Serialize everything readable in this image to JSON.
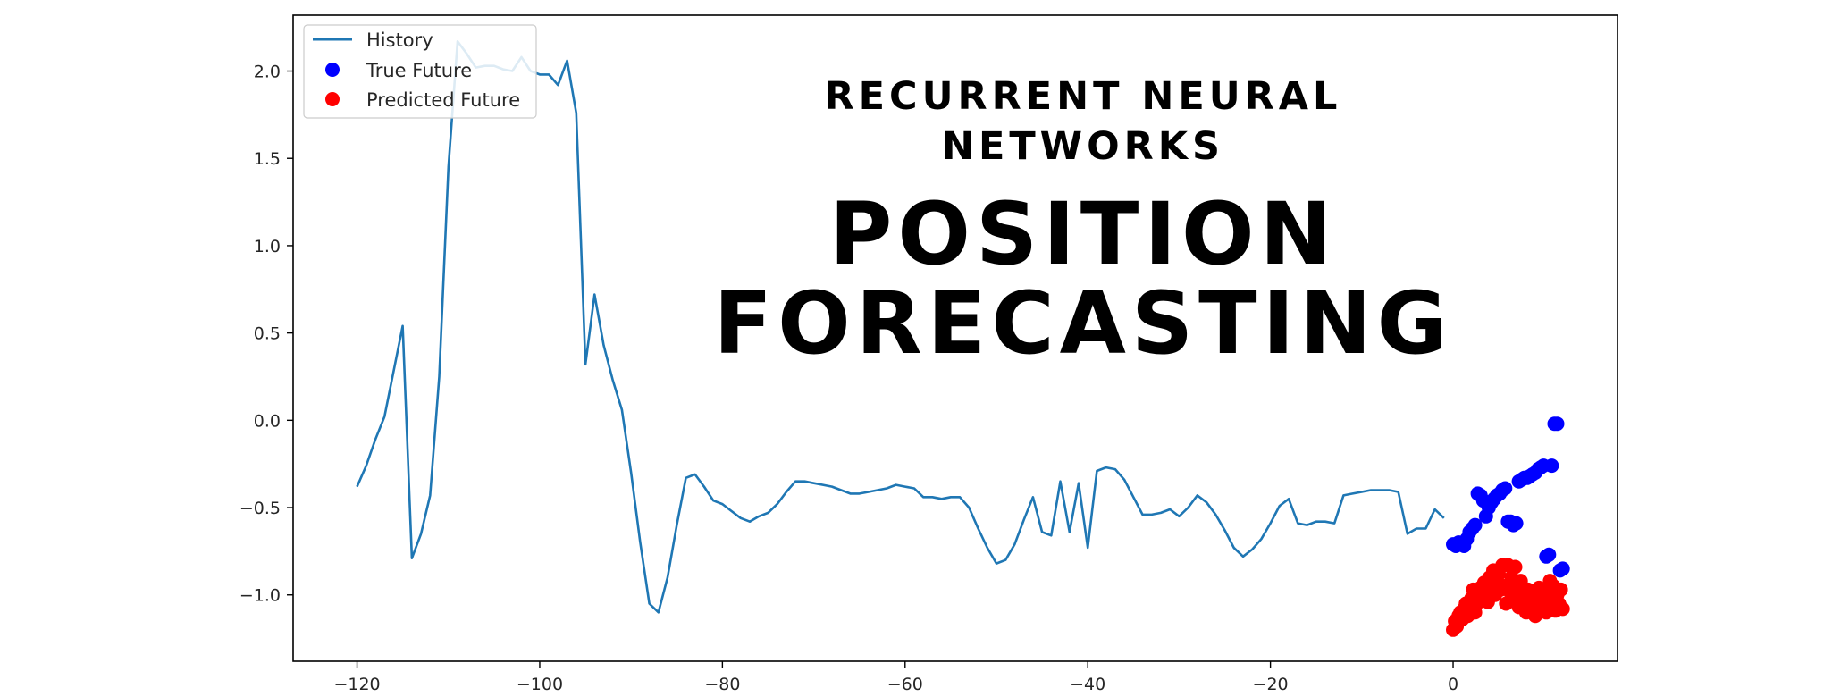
{
  "overlay": {
    "line1": "RECURRENT NEURAL",
    "line2": "NETWORKS",
    "line3": "POSITION",
    "line4": "FORECASTING"
  },
  "legend": {
    "history": "History",
    "true_future": "True Future",
    "predicted_future": "Predicted Future"
  },
  "chart_data": {
    "type": "line",
    "xlim": [
      -127,
      18
    ],
    "ylim": [
      -1.38,
      2.32
    ],
    "xticks": [
      -120,
      -100,
      -80,
      -60,
      -40,
      -20,
      0
    ],
    "xtick_labels": [
      "−120",
      "−100",
      "−80",
      "−60",
      "−40",
      "−20",
      "0"
    ],
    "yticks": [
      2.0,
      1.5,
      1.0,
      0.5,
      0.0,
      -0.5,
      -1.0
    ],
    "ytick_labels": [
      "2.0",
      "1.5",
      "1.0",
      "0.5",
      "0.0",
      "−0.5",
      "−1.0"
    ],
    "legend_position": "top-left",
    "grid": false,
    "colors": {
      "history": "#1f77b4",
      "true_future": "#0000ff",
      "predicted_future": "#ff0000"
    },
    "series": [
      {
        "name": "History",
        "kind": "line",
        "x": [
          -120,
          -119,
          -118,
          -117,
          -116,
          -115,
          -114,
          -113,
          -112,
          -111,
          -110,
          -109,
          -108,
          -107,
          -106,
          -105,
          -104,
          -103,
          -102,
          -101,
          -100,
          -99,
          -98,
          -97,
          -96,
          -95,
          -94,
          -93,
          -92,
          -91,
          -90,
          -89,
          -88,
          -87,
          -86,
          -85,
          -84,
          -83,
          -82,
          -81,
          -80,
          -79,
          -78,
          -77,
          -76,
          -75,
          -74,
          -73,
          -72,
          -71,
          -70,
          -69,
          -68,
          -67,
          -66,
          -65,
          -64,
          -63,
          -62,
          -61,
          -60,
          -59,
          -58,
          -57,
          -56,
          -55,
          -54,
          -53,
          -52,
          -51,
          -50,
          -49,
          -48,
          -47,
          -46,
          -45,
          -44,
          -43,
          -42,
          -41,
          -40,
          -39,
          -38,
          -37,
          -36,
          -35,
          -34,
          -33,
          -32,
          -31,
          -30,
          -29,
          -28,
          -27,
          -26,
          -25,
          -24,
          -23,
          -22,
          -21,
          -20,
          -19,
          -18,
          -17,
          -16,
          -15,
          -14,
          -13,
          -12,
          -11,
          -10,
          -9,
          -8,
          -7,
          -6,
          -5,
          -4,
          -3,
          -2,
          -1
        ],
        "y": [
          -0.38,
          -0.26,
          -0.11,
          0.02,
          0.28,
          0.54,
          -0.79,
          -0.65,
          -0.43,
          0.25,
          1.45,
          2.17,
          2.1,
          2.02,
          2.03,
          2.03,
          2.01,
          2.0,
          2.08,
          2.0,
          1.98,
          1.98,
          1.92,
          2.06,
          1.76,
          0.32,
          0.72,
          0.43,
          0.23,
          0.06,
          -0.3,
          -0.7,
          -1.05,
          -1.1,
          -0.9,
          -0.6,
          -0.33,
          -0.31,
          -0.38,
          -0.46,
          -0.48,
          -0.52,
          -0.56,
          -0.58,
          -0.55,
          -0.53,
          -0.48,
          -0.41,
          -0.35,
          -0.35,
          -0.36,
          -0.37,
          -0.38,
          -0.4,
          -0.42,
          -0.42,
          -0.41,
          -0.4,
          -0.39,
          -0.37,
          -0.38,
          -0.39,
          -0.44,
          -0.44,
          -0.45,
          -0.44,
          -0.44,
          -0.5,
          -0.62,
          -0.73,
          -0.82,
          -0.8,
          -0.71,
          -0.57,
          -0.44,
          -0.64,
          -0.66,
          -0.35,
          -0.64,
          -0.36,
          -0.73,
          -0.29,
          -0.27,
          -0.28,
          -0.34,
          -0.44,
          -0.54,
          -0.54,
          -0.53,
          -0.51,
          -0.55,
          -0.5,
          -0.43,
          -0.47,
          -0.54,
          -0.63,
          -0.73,
          -0.78,
          -0.74,
          -0.68,
          -0.59,
          -0.49,
          -0.45,
          -0.59,
          -0.6,
          -0.58,
          -0.58,
          -0.59,
          -0.43,
          -0.42,
          -0.41,
          -0.4,
          -0.4,
          -0.4,
          -0.41,
          -0.65,
          -0.62,
          -0.62,
          -0.51,
          -0.56
        ]
      },
      {
        "name": "True Future",
        "kind": "scatter",
        "x": [
          0,
          0.3,
          0.6,
          0.9,
          1.2,
          1.5,
          1.8,
          2.1,
          2.4,
          2.7,
          3.0,
          3.3,
          3.6,
          3.9,
          4.2,
          4.5,
          4.8,
          5.1,
          5.4,
          5.7,
          6.0,
          6.3,
          6.6,
          6.9,
          7.2,
          7.5,
          7.8,
          8.1,
          8.4,
          8.7,
          9.0,
          9.3,
          9.6,
          9.9,
          10.2,
          10.5,
          10.8,
          11.1,
          11.4,
          11.7,
          12.0
        ],
        "y": [
          -0.71,
          -0.72,
          -0.7,
          -0.71,
          -0.72,
          -0.68,
          -0.64,
          -0.62,
          -0.6,
          -0.42,
          -0.43,
          -0.46,
          -0.55,
          -0.5,
          -0.47,
          -0.45,
          -0.43,
          -0.42,
          -0.4,
          -0.39,
          -0.58,
          -0.58,
          -0.6,
          -0.59,
          -0.35,
          -0.34,
          -0.33,
          -0.33,
          -0.32,
          -0.31,
          -0.3,
          -0.28,
          -0.27,
          -0.26,
          -0.78,
          -0.77,
          -0.26,
          -0.02,
          -0.02,
          -0.86,
          -0.85
        ]
      },
      {
        "name": "Predicted Future",
        "kind": "scatter",
        "x": [
          0,
          0.2,
          0.4,
          0.6,
          0.8,
          1.0,
          1.2,
          1.4,
          1.6,
          1.8,
          2.0,
          2.2,
          2.4,
          2.6,
          2.8,
          3.0,
          3.2,
          3.4,
          3.6,
          3.8,
          4.0,
          4.2,
          4.4,
          4.6,
          4.8,
          5.0,
          5.2,
          5.4,
          5.6,
          5.8,
          6.0,
          6.2,
          6.4,
          6.6,
          6.8,
          7.0,
          7.2,
          7.4,
          7.6,
          7.8,
          8.0,
          8.2,
          8.4,
          8.6,
          8.8,
          9.0,
          9.2,
          9.4,
          9.6,
          9.8,
          10.0,
          10.2,
          10.4,
          10.6,
          10.8,
          11.0,
          11.2,
          11.4,
          11.6,
          11.8,
          12.0
        ],
        "y": [
          -1.2,
          -1.15,
          -1.18,
          -1.12,
          -1.1,
          -1.14,
          -1.08,
          -1.05,
          -1.12,
          -1.07,
          -1.02,
          -0.97,
          -1.1,
          -1.05,
          -1.0,
          -0.96,
          -1.02,
          -0.93,
          -0.98,
          -1.04,
          -0.9,
          -0.95,
          -0.86,
          -1.0,
          -0.92,
          -0.88,
          -0.97,
          -0.83,
          -0.95,
          -1.05,
          -0.83,
          -0.98,
          -0.9,
          -1.02,
          -0.84,
          -0.95,
          -1.07,
          -0.92,
          -0.99,
          -1.06,
          -1.1,
          -0.97,
          -1.03,
          -1.08,
          -1.0,
          -1.12,
          -1.05,
          -0.96,
          -1.02,
          -1.08,
          -0.99,
          -1.1,
          -1.02,
          -0.92,
          -1.07,
          -0.95,
          -1.09,
          -1.0,
          -1.05,
          -0.97,
          -1.08
        ]
      }
    ]
  }
}
